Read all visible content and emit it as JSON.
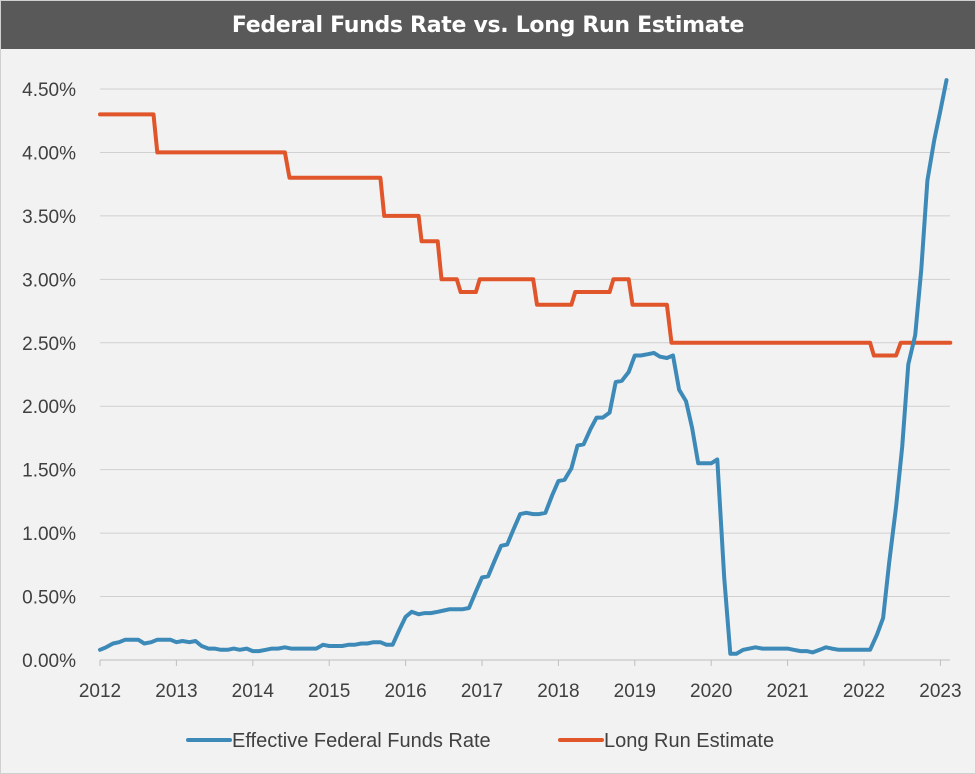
{
  "chart_data": {
    "type": "line",
    "title": "Federal Funds Rate vs. Long Run Estimate",
    "xlabel": "",
    "ylabel": "",
    "xlim": [
      2012,
      2023.15
    ],
    "ylim": [
      0,
      4.5
    ],
    "grid": true,
    "legend_position": "bottom",
    "x_tick_labels": [
      "2012",
      "2013",
      "2014",
      "2015",
      "2016",
      "2017",
      "2018",
      "2019",
      "2020",
      "2021",
      "2022",
      "2023"
    ],
    "y_tick_labels": [
      "0.00%",
      "0.50%",
      "1.00%",
      "1.50%",
      "2.00%",
      "2.50%",
      "3.00%",
      "3.50%",
      "4.00%",
      "4.50%"
    ],
    "series": [
      {
        "name": "Effective Federal Funds Rate",
        "color": "#3d8ab8",
        "points": [
          [
            2012.0,
            0.08
          ],
          [
            2012.08,
            0.1
          ],
          [
            2012.17,
            0.13
          ],
          [
            2012.25,
            0.14
          ],
          [
            2012.33,
            0.16
          ],
          [
            2012.42,
            0.16
          ],
          [
            2012.5,
            0.16
          ],
          [
            2012.58,
            0.13
          ],
          [
            2012.67,
            0.14
          ],
          [
            2012.75,
            0.16
          ],
          [
            2012.83,
            0.16
          ],
          [
            2012.92,
            0.16
          ],
          [
            2013.0,
            0.14
          ],
          [
            2013.08,
            0.15
          ],
          [
            2013.17,
            0.14
          ],
          [
            2013.25,
            0.15
          ],
          [
            2013.33,
            0.11
          ],
          [
            2013.42,
            0.09
          ],
          [
            2013.5,
            0.09
          ],
          [
            2013.58,
            0.08
          ],
          [
            2013.67,
            0.08
          ],
          [
            2013.75,
            0.09
          ],
          [
            2013.83,
            0.08
          ],
          [
            2013.92,
            0.09
          ],
          [
            2014.0,
            0.07
          ],
          [
            2014.08,
            0.07
          ],
          [
            2014.17,
            0.08
          ],
          [
            2014.25,
            0.09
          ],
          [
            2014.33,
            0.09
          ],
          [
            2014.42,
            0.1
          ],
          [
            2014.5,
            0.09
          ],
          [
            2014.58,
            0.09
          ],
          [
            2014.67,
            0.09
          ],
          [
            2014.75,
            0.09
          ],
          [
            2014.83,
            0.09
          ],
          [
            2014.92,
            0.12
          ],
          [
            2015.0,
            0.11
          ],
          [
            2015.08,
            0.11
          ],
          [
            2015.17,
            0.11
          ],
          [
            2015.25,
            0.12
          ],
          [
            2015.33,
            0.12
          ],
          [
            2015.42,
            0.13
          ],
          [
            2015.5,
            0.13
          ],
          [
            2015.58,
            0.14
          ],
          [
            2015.67,
            0.14
          ],
          [
            2015.75,
            0.12
          ],
          [
            2015.83,
            0.12
          ],
          [
            2015.92,
            0.24
          ],
          [
            2016.0,
            0.34
          ],
          [
            2016.08,
            0.38
          ],
          [
            2016.17,
            0.36
          ],
          [
            2016.25,
            0.37
          ],
          [
            2016.33,
            0.37
          ],
          [
            2016.42,
            0.38
          ],
          [
            2016.5,
            0.39
          ],
          [
            2016.58,
            0.4
          ],
          [
            2016.67,
            0.4
          ],
          [
            2016.75,
            0.4
          ],
          [
            2016.83,
            0.41
          ],
          [
            2016.92,
            0.54
          ],
          [
            2017.0,
            0.65
          ],
          [
            2017.08,
            0.66
          ],
          [
            2017.17,
            0.79
          ],
          [
            2017.25,
            0.9
          ],
          [
            2017.33,
            0.91
          ],
          [
            2017.42,
            1.04
          ],
          [
            2017.5,
            1.15
          ],
          [
            2017.58,
            1.16
          ],
          [
            2017.67,
            1.15
          ],
          [
            2017.75,
            1.15
          ],
          [
            2017.83,
            1.16
          ],
          [
            2017.92,
            1.3
          ],
          [
            2018.0,
            1.41
          ],
          [
            2018.08,
            1.42
          ],
          [
            2018.17,
            1.51
          ],
          [
            2018.25,
            1.69
          ],
          [
            2018.33,
            1.7
          ],
          [
            2018.42,
            1.82
          ],
          [
            2018.5,
            1.91
          ],
          [
            2018.58,
            1.91
          ],
          [
            2018.67,
            1.95
          ],
          [
            2018.75,
            2.19
          ],
          [
            2018.83,
            2.2
          ],
          [
            2018.92,
            2.27
          ],
          [
            2019.0,
            2.4
          ],
          [
            2019.08,
            2.4
          ],
          [
            2019.17,
            2.41
          ],
          [
            2019.25,
            2.42
          ],
          [
            2019.33,
            2.39
          ],
          [
            2019.42,
            2.38
          ],
          [
            2019.5,
            2.4
          ],
          [
            2019.58,
            2.13
          ],
          [
            2019.67,
            2.04
          ],
          [
            2019.75,
            1.83
          ],
          [
            2019.83,
            1.55
          ],
          [
            2019.92,
            1.55
          ],
          [
            2020.0,
            1.55
          ],
          [
            2020.08,
            1.58
          ],
          [
            2020.17,
            0.65
          ],
          [
            2020.25,
            0.05
          ],
          [
            2020.33,
            0.05
          ],
          [
            2020.42,
            0.08
          ],
          [
            2020.5,
            0.09
          ],
          [
            2020.58,
            0.1
          ],
          [
            2020.67,
            0.09
          ],
          [
            2020.75,
            0.09
          ],
          [
            2020.83,
            0.09
          ],
          [
            2020.92,
            0.09
          ],
          [
            2021.0,
            0.09
          ],
          [
            2021.08,
            0.08
          ],
          [
            2021.17,
            0.07
          ],
          [
            2021.25,
            0.07
          ],
          [
            2021.33,
            0.06
          ],
          [
            2021.42,
            0.08
          ],
          [
            2021.5,
            0.1
          ],
          [
            2021.58,
            0.09
          ],
          [
            2021.67,
            0.08
          ],
          [
            2021.75,
            0.08
          ],
          [
            2021.83,
            0.08
          ],
          [
            2021.92,
            0.08
          ],
          [
            2022.0,
            0.08
          ],
          [
            2022.08,
            0.08
          ],
          [
            2022.17,
            0.2
          ],
          [
            2022.25,
            0.33
          ],
          [
            2022.33,
            0.77
          ],
          [
            2022.42,
            1.21
          ],
          [
            2022.5,
            1.68
          ],
          [
            2022.58,
            2.33
          ],
          [
            2022.67,
            2.56
          ],
          [
            2022.75,
            3.08
          ],
          [
            2022.83,
            3.78
          ],
          [
            2022.92,
            4.1
          ],
          [
            2023.0,
            4.33
          ],
          [
            2023.08,
            4.57
          ]
        ]
      },
      {
        "name": "Long Run Estimate",
        "color": "#e0562a",
        "points": [
          [
            2012.0,
            4.3
          ],
          [
            2012.7,
            4.3
          ],
          [
            2012.75,
            4.0
          ],
          [
            2014.42,
            4.0
          ],
          [
            2014.48,
            3.8
          ],
          [
            2015.67,
            3.8
          ],
          [
            2015.72,
            3.5
          ],
          [
            2016.17,
            3.5
          ],
          [
            2016.21,
            3.3
          ],
          [
            2016.42,
            3.3
          ],
          [
            2016.47,
            3.0
          ],
          [
            2016.67,
            3.0
          ],
          [
            2016.72,
            2.9
          ],
          [
            2016.92,
            2.9
          ],
          [
            2016.97,
            3.0
          ],
          [
            2017.67,
            3.0
          ],
          [
            2017.72,
            2.8
          ],
          [
            2018.17,
            2.8
          ],
          [
            2018.22,
            2.9
          ],
          [
            2018.67,
            2.9
          ],
          [
            2018.72,
            3.0
          ],
          [
            2018.92,
            3.0
          ],
          [
            2018.97,
            2.8
          ],
          [
            2019.42,
            2.8
          ],
          [
            2019.48,
            2.5
          ],
          [
            2022.08,
            2.5
          ],
          [
            2022.13,
            2.4
          ],
          [
            2022.42,
            2.4
          ],
          [
            2022.48,
            2.5
          ],
          [
            2023.13,
            2.5
          ]
        ]
      }
    ]
  }
}
